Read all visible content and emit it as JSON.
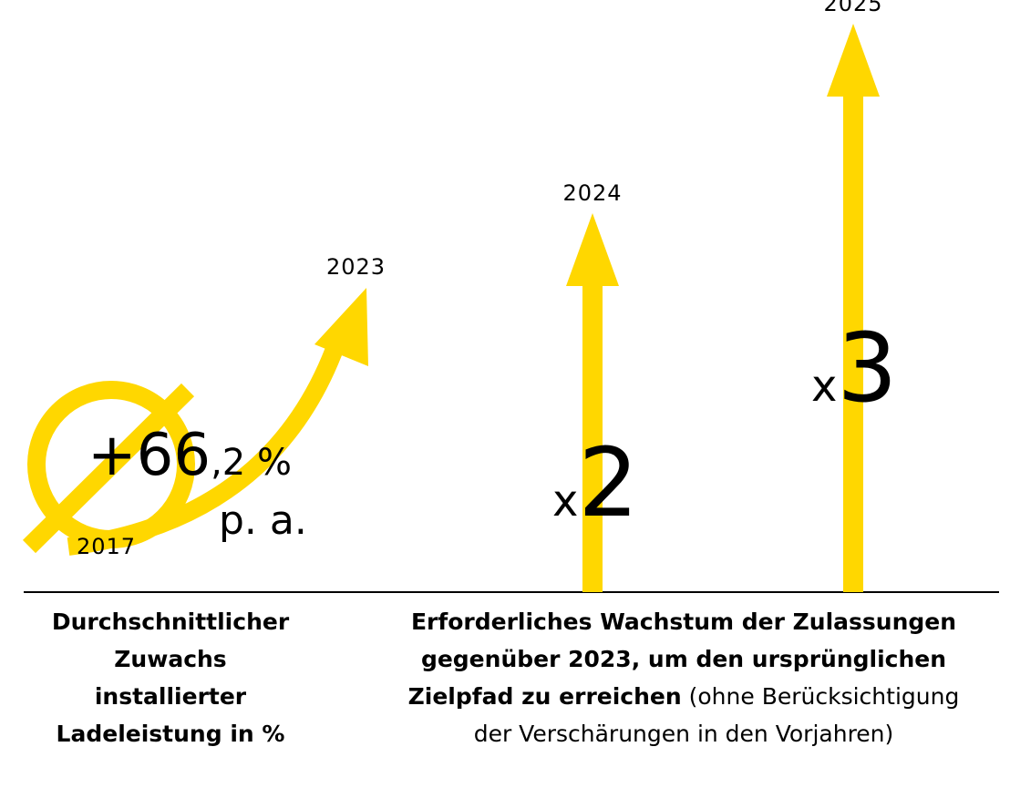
{
  "colors": {
    "accent": "#FFD700",
    "text": "#000000",
    "axis": "#000000"
  },
  "chart_data": {
    "type": "bar",
    "categories": [
      "2024",
      "2025"
    ],
    "values": [
      2,
      3
    ],
    "value_labels": [
      {
        "prefix": "x",
        "number": "2"
      },
      {
        "prefix": "x",
        "number": "3"
      }
    ],
    "growth": {
      "start_year": "2017",
      "end_year": "2023",
      "value_main": "+66",
      "value_decimal": ",2 %",
      "unit": "p. a.",
      "symbol": "average-diameter-icon"
    },
    "captions": {
      "left": [
        "Durchschnittlicher",
        "Zuwachs",
        "installierter",
        "Ladeleistung in %"
      ],
      "right_bold": [
        "Erforderliches Wachstum der Zulassungen",
        "gegenüber 2023, um den ursprünglichen",
        "Zielpfad zu erreichen"
      ],
      "right_normal_inline": " (ohne Berücksichtigung",
      "right_normal_last": "der Verschärungen in den Vorjahren)"
    }
  }
}
